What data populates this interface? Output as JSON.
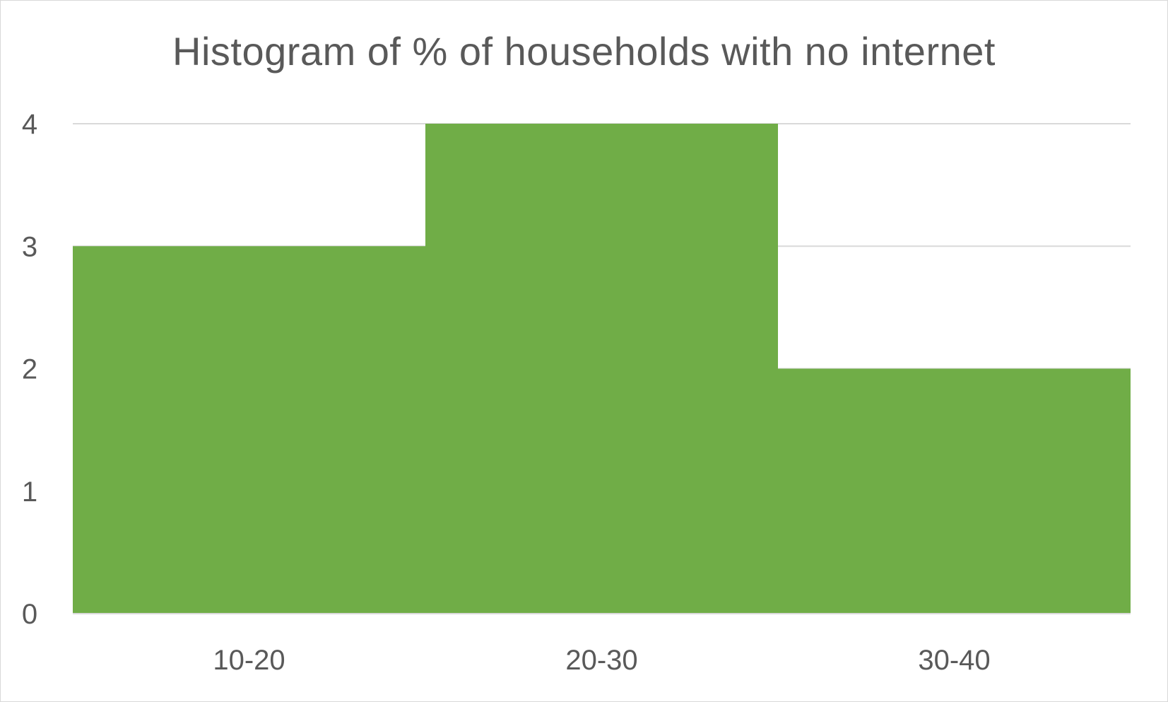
{
  "chart_data": {
    "type": "bar",
    "title": "Histogram of % of households with no internet",
    "categories": [
      "10-20",
      "20-30",
      "30-40"
    ],
    "values": [
      3,
      4,
      2
    ],
    "xlabel": "",
    "ylabel": "",
    "ylim": [
      0,
      4
    ],
    "yticks": [
      "0",
      "1",
      "2",
      "3",
      "4"
    ],
    "grid": true,
    "legend": "none",
    "colors": {
      "bar": "#70ad47",
      "gridline": "#d9d9d9",
      "text": "#595959"
    }
  }
}
